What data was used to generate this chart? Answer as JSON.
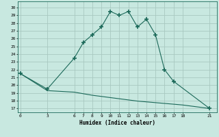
{
  "xlabel": "Humidex (Indice chaleur)",
  "bg_color": "#c8e8e0",
  "grid_color": "#a8c8c0",
  "line_color": "#1a6858",
  "upper_x": [
    0,
    3,
    6,
    7,
    8,
    9,
    10,
    11,
    12,
    13,
    14,
    15,
    16,
    17,
    21
  ],
  "upper_y": [
    21.5,
    19.5,
    23.5,
    25.5,
    26.5,
    27.5,
    29.5,
    29.0,
    29.5,
    27.5,
    28.5,
    26.5,
    22.0,
    20.5,
    17.0
  ],
  "lower_x": [
    0,
    3,
    6,
    7,
    8,
    9,
    10,
    11,
    12,
    13,
    14,
    15,
    16,
    17,
    18,
    21
  ],
  "lower_y": [
    21.5,
    19.3,
    19.1,
    18.9,
    18.7,
    18.55,
    18.4,
    18.25,
    18.1,
    17.95,
    17.85,
    17.75,
    17.65,
    17.55,
    17.45,
    17.0
  ],
  "xticks": [
    0,
    3,
    6,
    7,
    8,
    9,
    10,
    11,
    12,
    13,
    14,
    15,
    16,
    17,
    18,
    21
  ],
  "yticks": [
    17,
    18,
    19,
    20,
    21,
    22,
    23,
    24,
    25,
    26,
    27,
    28,
    29,
    30
  ],
  "ylim": [
    16.5,
    30.8
  ],
  "xlim": [
    -0.3,
    21.8
  ]
}
